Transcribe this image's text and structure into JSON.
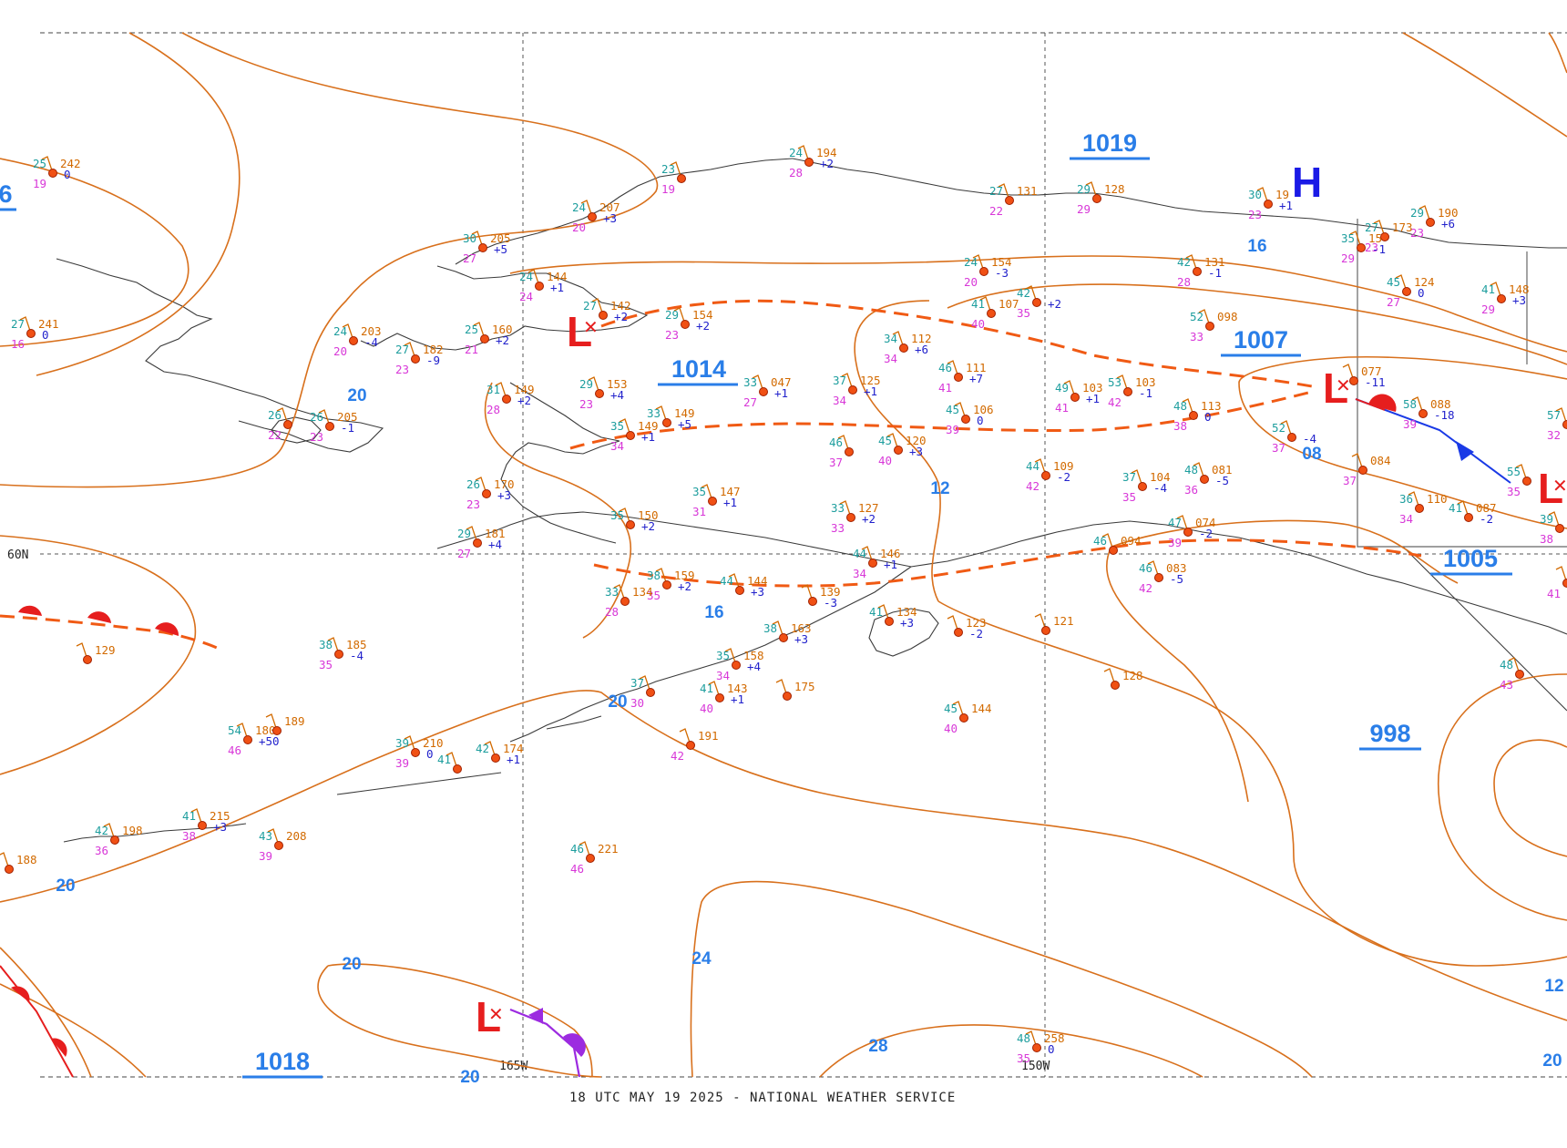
{
  "footer": "18 UTC MAY 19 2025 - NATIONAL WEATHER SERVICE",
  "grid_labels": {
    "lat60": "60N",
    "lon165": "165W",
    "lon150": "150W"
  },
  "pressure_centers": [
    {
      "type": "high",
      "symbol": "H"
    },
    {
      "type": "low",
      "symbol": "L"
    },
    {
      "type": "low",
      "symbol": "L"
    },
    {
      "type": "low",
      "symbol": "L"
    },
    {
      "type": "low",
      "symbol": "L"
    }
  ],
  "central_pressures": [
    "1019",
    "1014",
    "1007",
    "1005",
    "998",
    "1018",
    "6"
  ],
  "isobar_labels": [
    "20",
    "16",
    "12",
    "08",
    "20",
    "16",
    "20",
    "24",
    "28",
    "20",
    "20",
    "12",
    "20"
  ],
  "stations": [
    {
      "t": "25",
      "d": "19",
      "p": "242",
      "tend": "0"
    },
    {
      "t": "27",
      "d": "16",
      "p": "241",
      "tend": "0"
    },
    {
      "t": "24",
      "d": "20",
      "p": "203",
      "tend": "-4"
    },
    {
      "t": "27",
      "d": "23",
      "p": "182",
      "tend": "-9"
    },
    {
      "t": "26",
      "d": "22",
      "p": "",
      "tend": ""
    },
    {
      "t": "26",
      "d": "23",
      "p": "205",
      "tend": "-1"
    },
    {
      "t": "30",
      "d": "27",
      "p": "205",
      "tend": "+5"
    },
    {
      "t": "24",
      "d": "20",
      "p": "207",
      "tend": "+3"
    },
    {
      "t": "24",
      "d": "24",
      "p": "144",
      "tend": "+1"
    },
    {
      "t": "25",
      "d": "21",
      "p": "160",
      "tend": "+2"
    },
    {
      "t": "27",
      "d": "",
      "p": "142",
      "tend": "+2"
    },
    {
      "t": "29",
      "d": "23",
      "p": "154",
      "tend": "+2"
    },
    {
      "t": "31",
      "d": "28",
      "p": "149",
      "tend": "+2"
    },
    {
      "t": "29",
      "d": "23",
      "p": "153",
      "tend": "+4"
    },
    {
      "t": "33",
      "d": "27",
      "p": "047",
      "tend": "+1"
    },
    {
      "t": "35",
      "d": "34",
      "p": "149",
      "tend": "+1"
    },
    {
      "t": "33",
      "d": "",
      "p": "149",
      "tend": "+5"
    },
    {
      "t": "26",
      "d": "23",
      "p": "170",
      "tend": "+3"
    },
    {
      "t": "29",
      "d": "27",
      "p": "181",
      "tend": "+4"
    },
    {
      "t": "35",
      "d": "31",
      "p": "147",
      "tend": "+1"
    },
    {
      "t": "35",
      "d": "",
      "p": "150",
      "tend": "+2"
    },
    {
      "t": "24",
      "d": "28",
      "p": "194",
      "tend": "+2"
    },
    {
      "t": "23",
      "d": "19",
      "p": "",
      "tend": ""
    },
    {
      "t": "27",
      "d": "22",
      "p": "131",
      "tend": ""
    },
    {
      "t": "29",
      "d": "29",
      "p": "128",
      "tend": ""
    },
    {
      "t": "30",
      "d": "23",
      "p": "19",
      "tend": "+1"
    },
    {
      "t": "24",
      "d": "20",
      "p": "154",
      "tend": "-3"
    },
    {
      "t": "41",
      "d": "40",
      "p": "107",
      "tend": ""
    },
    {
      "t": "42",
      "d": "35",
      "p": "",
      "tend": "+2"
    },
    {
      "t": "34",
      "d": "34",
      "p": "112",
      "tend": "+6"
    },
    {
      "t": "37",
      "d": "34",
      "p": "125",
      "tend": "+1"
    },
    {
      "t": "46",
      "d": "41",
      "p": "111",
      "tend": "+7"
    },
    {
      "t": "45",
      "d": "39",
      "p": "106",
      "tend": "0"
    },
    {
      "t": "46",
      "d": "37",
      "p": "",
      "tend": ""
    },
    {
      "t": "45",
      "d": "40",
      "p": "120",
      "tend": "+3"
    },
    {
      "t": "33",
      "d": "33",
      "p": "127",
      "tend": "+2"
    },
    {
      "t": "49",
      "d": "41",
      "p": "103",
      "tend": "+1"
    },
    {
      "t": "53",
      "d": "42",
      "p": "103",
      "tend": "-1"
    },
    {
      "t": "48",
      "d": "38",
      "p": "113",
      "tend": "0"
    },
    {
      "t": "42",
      "d": "28",
      "p": "131",
      "tend": "-1"
    },
    {
      "t": "52",
      "d": "33",
      "p": "098",
      "tend": ""
    },
    {
      "t": "44",
      "d": "42",
      "p": "109",
      "tend": "-2"
    },
    {
      "t": "37",
      "d": "35",
      "p": "104",
      "tend": "-4"
    },
    {
      "t": "48",
      "d": "36",
      "p": "081",
      "tend": "-5"
    },
    {
      "t": "52",
      "d": "37",
      "p": "",
      "tend": "-4"
    },
    {
      "t": "",
      "d": "",
      "p": "077",
      "tend": "-11"
    },
    {
      "t": "58",
      "d": "39",
      "p": "088",
      "tend": "-18"
    },
    {
      "t": "",
      "d": "37",
      "p": "084",
      "tend": ""
    },
    {
      "t": "36",
      "d": "34",
      "p": "110",
      "tend": ""
    },
    {
      "t": "41",
      "d": "",
      "p": "087",
      "tend": "-2"
    },
    {
      "t": "29",
      "d": "23",
      "p": "190",
      "tend": "+6"
    },
    {
      "t": "27",
      "d": "23",
      "p": "173",
      "tend": ""
    },
    {
      "t": "35",
      "d": "29",
      "p": "15",
      "tend": "-1"
    },
    {
      "t": "45",
      "d": "27",
      "p": "124",
      "tend": "0"
    },
    {
      "t": "41",
      "d": "29",
      "p": "148",
      "tend": "+3"
    },
    {
      "t": "57",
      "d": "32",
      "p": "070",
      "tend": ""
    },
    {
      "t": "47",
      "d": "39",
      "p": "074",
      "tend": "-2"
    },
    {
      "t": "46",
      "d": "",
      "p": "094",
      "tend": ""
    },
    {
      "t": "46",
      "d": "42",
      "p": "083",
      "tend": "-5"
    },
    {
      "t": "44",
      "d": "34",
      "p": "146",
      "tend": "+1"
    },
    {
      "t": "38",
      "d": "35",
      "p": "159",
      "tend": "+2"
    },
    {
      "t": "44",
      "d": "",
      "p": "144",
      "tend": "+3"
    },
    {
      "t": "",
      "d": "",
      "p": "139",
      "tend": "-3"
    },
    {
      "t": "33",
      "d": "28",
      "p": "134",
      "tend": ""
    },
    {
      "t": "38",
      "d": "35",
      "p": "185",
      "tend": "-4"
    },
    {
      "t": "38",
      "d": "",
      "p": "163",
      "tend": "+3"
    },
    {
      "t": "35",
      "d": "34",
      "p": "158",
      "tend": "+4"
    },
    {
      "t": "41",
      "d": "40",
      "p": "143",
      "tend": "+1"
    },
    {
      "t": "",
      "d": "",
      "p": "175",
      "tend": ""
    },
    {
      "t": "37",
      "d": "30",
      "p": "",
      "tend": ""
    },
    {
      "t": "",
      "d": "42",
      "p": "191",
      "tend": ""
    },
    {
      "t": "41",
      "d": "",
      "p": "134",
      "tend": "+3"
    },
    {
      "t": "",
      "d": "",
      "p": "123",
      "tend": "-2"
    },
    {
      "t": "45",
      "d": "40",
      "p": "144",
      "tend": ""
    },
    {
      "t": "",
      "d": "",
      "p": "128",
      "tend": ""
    },
    {
      "t": "",
      "d": "",
      "p": "121",
      "tend": ""
    },
    {
      "t": "",
      "d": "",
      "p": "129",
      "tend": ""
    },
    {
      "t": "54",
      "d": "46",
      "p": "180",
      "tend": "+50"
    },
    {
      "t": "",
      "d": "",
      "p": "189",
      "tend": ""
    },
    {
      "t": "39",
      "d": "39",
      "p": "210",
      "tend": "0"
    },
    {
      "t": "41",
      "d": "",
      "p": "",
      "tend": ""
    },
    {
      "t": "42",
      "d": "",
      "p": "174",
      "tend": "+1"
    },
    {
      "t": "42",
      "d": "36",
      "p": "198",
      "tend": ""
    },
    {
      "t": "41",
      "d": "38",
      "p": "215",
      "tend": "+3"
    },
    {
      "t": "43",
      "d": "39",
      "p": "208",
      "tend": ""
    },
    {
      "t": "",
      "d": "",
      "p": "188",
      "tend": ""
    },
    {
      "t": "46",
      "d": "46",
      "p": "221",
      "tend": ""
    },
    {
      "t": "48",
      "d": "35",
      "p": "258",
      "tend": "0"
    },
    {
      "t": "55",
      "d": "35",
      "p": "",
      "tend": ""
    },
    {
      "t": "39",
      "d": "38",
      "p": "",
      "tend": ""
    },
    {
      "t": "48",
      "d": "43",
      "p": "",
      "tend": ""
    },
    {
      "t": "",
      "d": "41",
      "p": "",
      "tend": ""
    }
  ]
}
